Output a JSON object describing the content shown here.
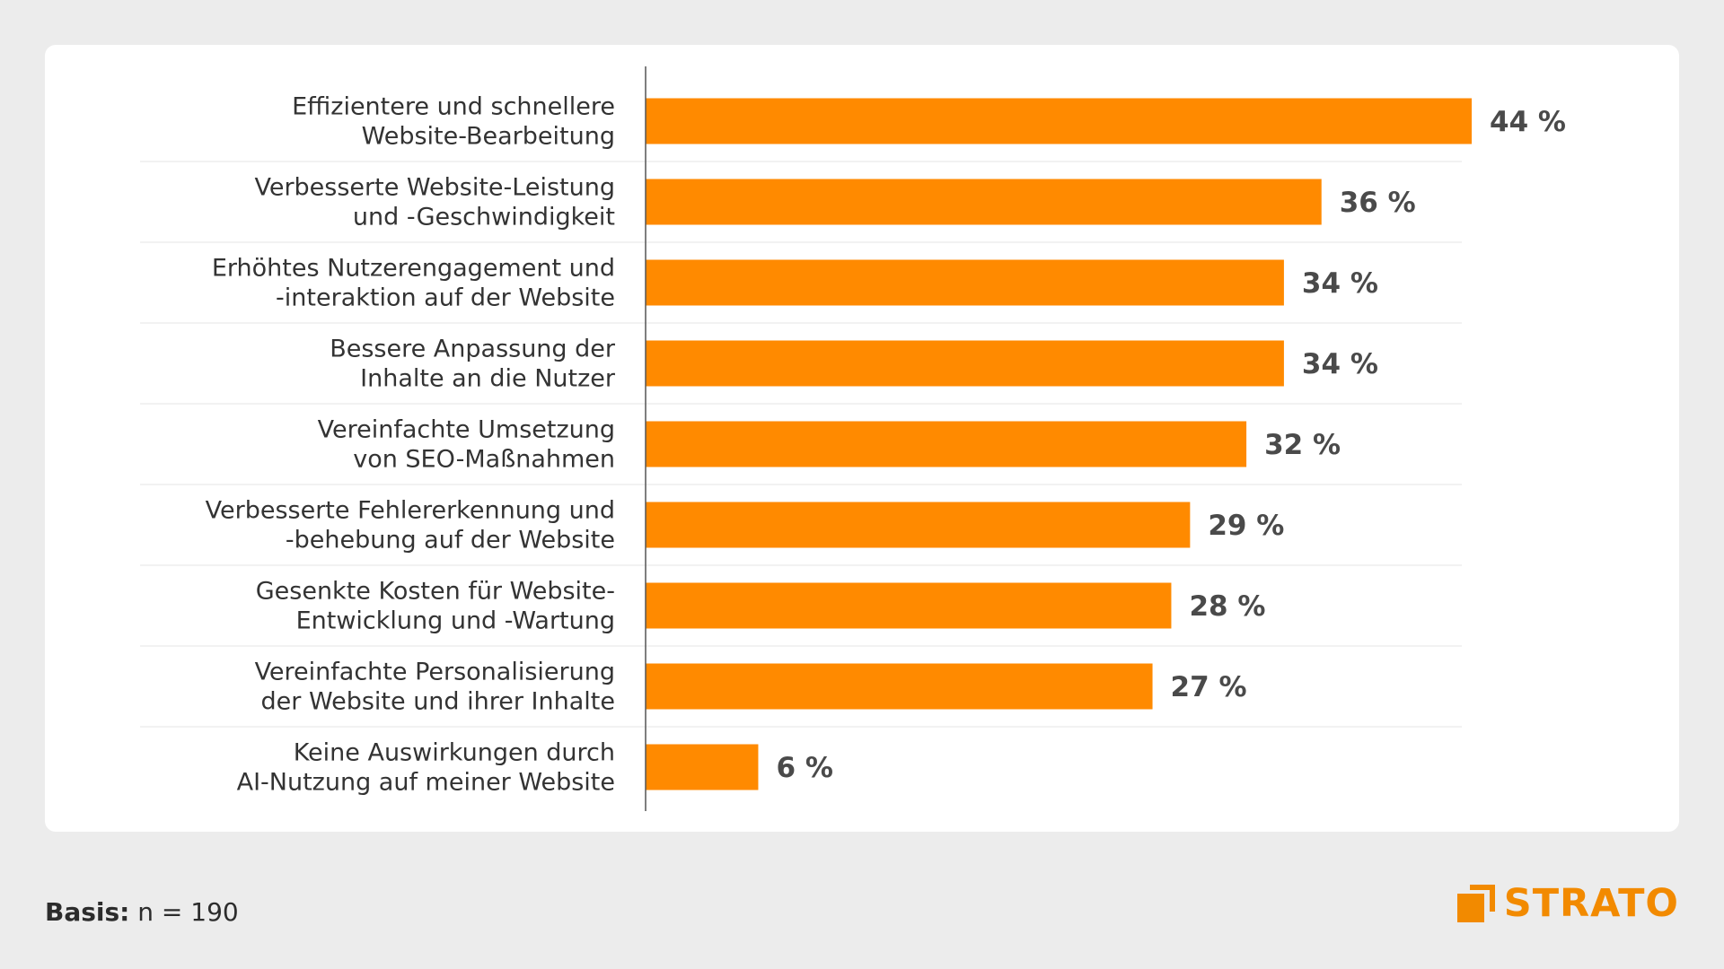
{
  "colors": {
    "bar": "#ff8a00",
    "axis": "#555555",
    "grid": "#e6e6e6",
    "logo": "#f28a00"
  },
  "footer": {
    "basis_label": "Basis:",
    "basis_value": "n = 190"
  },
  "logo": {
    "text": "STRATO",
    "icon": "strato-logo-icon"
  },
  "chart_data": {
    "type": "bar",
    "orientation": "horizontal",
    "categories": [
      [
        "Effizientere und schnellere",
        "Website-Bearbeitung"
      ],
      [
        "Verbesserte Website-Leistung",
        "und -Geschwindigkeit"
      ],
      [
        "Erhöhtes Nutzerengagement und",
        "-interaktion auf der Website"
      ],
      [
        "Bessere Anpassung der",
        "Inhalte an die Nutzer"
      ],
      [
        "Vereinfachte Umsetzung",
        "von SEO-Maßnahmen"
      ],
      [
        "Verbesserte Fehlererkennung und",
        "-behebung auf der Website"
      ],
      [
        "Gesenkte Kosten für Website-",
        "Entwicklung und -Wartung"
      ],
      [
        "Vereinfachte Personalisierung",
        "der Website und ihrer Inhalte"
      ],
      [
        "Keine Auswirkungen durch",
        "AI-Nutzung auf meiner Website"
      ]
    ],
    "values": [
      44,
      36,
      34,
      34,
      32,
      29,
      28,
      27,
      6
    ],
    "value_labels": [
      "44 %",
      "36 %",
      "34 %",
      "34 %",
      "32 %",
      "29 %",
      "28 %",
      "27 %",
      "6 %"
    ],
    "unit": "%",
    "xlim": [
      0,
      44
    ],
    "grid": false,
    "legend": "none"
  }
}
